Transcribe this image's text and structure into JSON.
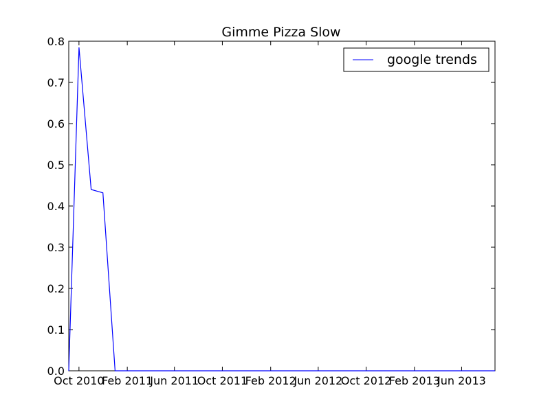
{
  "chart_data": {
    "type": "line",
    "title": "Gimme Pizza Slow",
    "xlabel": "",
    "ylabel": "",
    "x_ticks": [
      "Oct 2010",
      "Feb 2011",
      "Jun 2011",
      "Oct 2011",
      "Feb 2012",
      "Jun 2012",
      "Oct 2012",
      "Feb 2013",
      "Jun 2013"
    ],
    "y_ticks": [
      "0.0",
      "0.1",
      "0.2",
      "0.3",
      "0.4",
      "0.5",
      "0.6",
      "0.7",
      "0.8"
    ],
    "xlim": [
      "2010-09-05",
      "2013-08-25"
    ],
    "ylim": [
      0,
      0.8
    ],
    "grid": false,
    "legend_position": "top-right",
    "series": [
      {
        "name": "google trends",
        "color": "#0000ff",
        "x": [
          "2010-09-05",
          "2010-10-01",
          "2010-11-01",
          "2010-12-01",
          "2011-01-01",
          "2011-02-01",
          "2013-08-25"
        ],
        "y": [
          0.0,
          0.785,
          0.44,
          0.432,
          0.0,
          0.0,
          0.0
        ]
      }
    ]
  }
}
